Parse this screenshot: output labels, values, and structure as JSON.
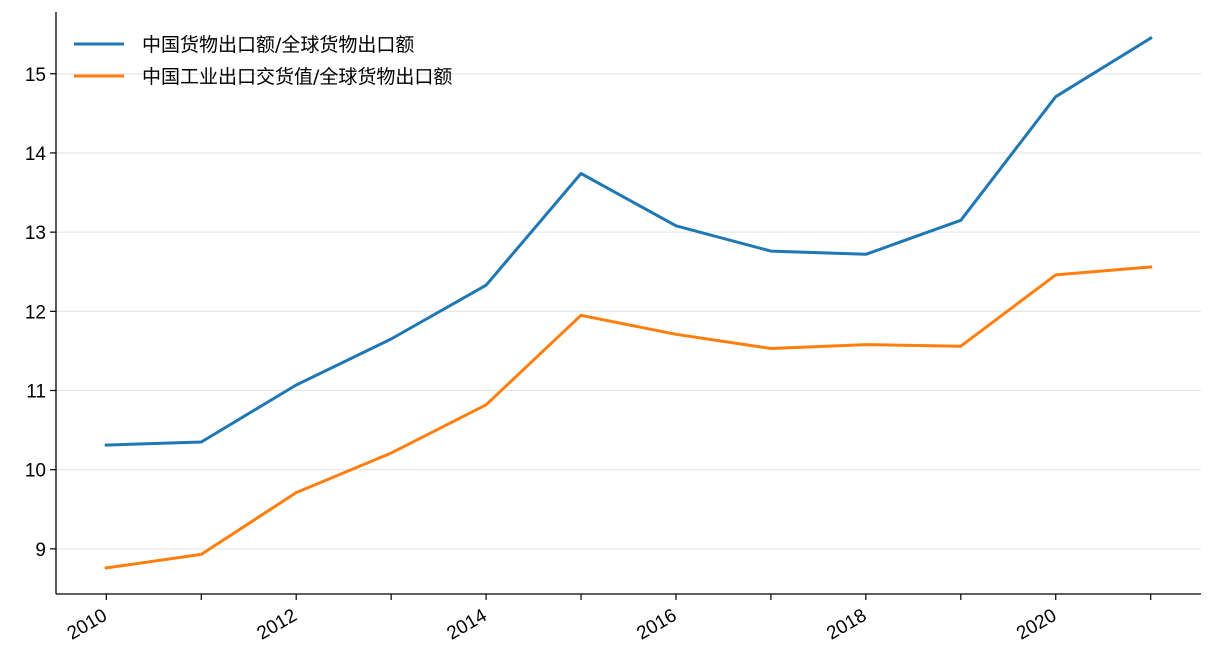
{
  "chart_data": {
    "type": "line",
    "x": [
      2010,
      2011,
      2012,
      2013,
      2014,
      2015,
      2016,
      2017,
      2018,
      2019,
      2020,
      2021
    ],
    "series": [
      {
        "name": "中国货物出口额/全球货物出口额",
        "color": "#1f77b4",
        "values": [
          10.31,
          10.35,
          11.07,
          11.65,
          12.33,
          13.74,
          13.08,
          12.76,
          12.72,
          13.15,
          14.71,
          15.45
        ]
      },
      {
        "name": "中国工业出口交货值/全球货物出口额",
        "color": "#ff7f0e",
        "values": [
          8.76,
          8.93,
          9.71,
          10.21,
          10.82,
          11.95,
          11.71,
          11.53,
          11.58,
          11.56,
          12.46,
          12.56
        ]
      }
    ],
    "xticks": [
      "2010",
      "2012",
      "2014",
      "2016",
      "2018",
      "2020"
    ],
    "yticks": [
      "9",
      "10",
      "11",
      "12",
      "13",
      "14",
      "15"
    ],
    "xlim": [
      2009.47,
      2021.53
    ],
    "ylim": [
      8.43,
      15.78
    ],
    "grid": "horizontal",
    "legend": "top-left",
    "title": "",
    "xlabel": "",
    "ylabel": ""
  }
}
